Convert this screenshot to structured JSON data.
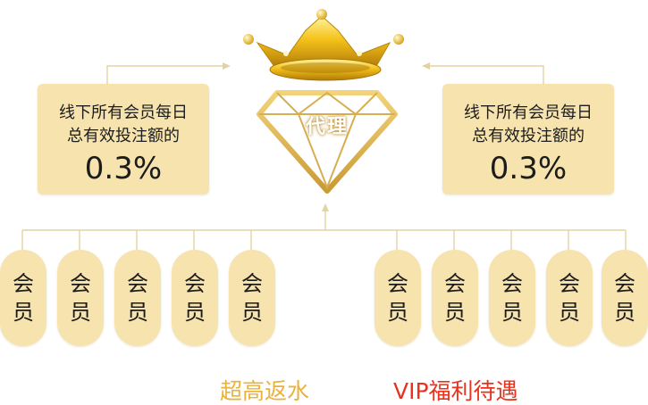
{
  "center": {
    "role_label": "代理"
  },
  "info_boxes": [
    {
      "line1": "线下所有会员每日",
      "line2": "总有效投注额的",
      "percent": "0.3%"
    },
    {
      "line1": "线下所有会员每日",
      "line2": "总有效投注额的",
      "percent": "0.3%"
    }
  ],
  "member_label": {
    "char1": "会",
    "char2": "员"
  },
  "left_members_count_shown": 5,
  "right_members_count_shown": 5,
  "captions": {
    "left": "超高返水",
    "right": "VIP福利待遇"
  },
  "colors": {
    "box_fill": "#f6e3ae",
    "gold": "#eab23a",
    "caption_red": "#e8321e",
    "connector": "#e3d2a4"
  },
  "icons": [
    "crown-icon",
    "diamond-icon"
  ]
}
